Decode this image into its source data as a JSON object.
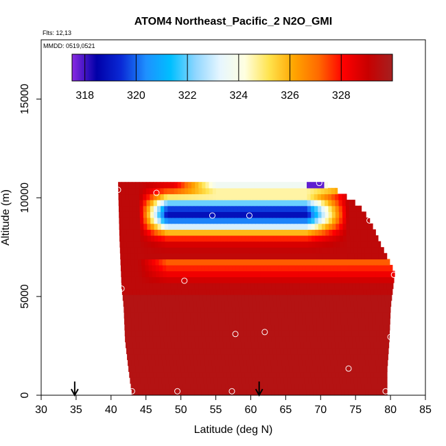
{
  "chart_data": {
    "type": "heatmap",
    "title": "ATOM4 Northeast_Pacific_2 N2O_GMI",
    "flights_note": "Flts: 12,13",
    "date_note": "MMDD: 0519,0521",
    "xlabel": "Latitude (deg N)",
    "ylabel": "Altitude (m)",
    "xlim": [
      30,
      85
    ],
    "ylim": [
      0,
      18000
    ],
    "x_ticks": [
      30,
      35,
      40,
      45,
      50,
      55,
      60,
      65,
      70,
      75,
      80,
      85
    ],
    "x_tick_labels": [
      "30",
      "35",
      "40",
      "45",
      "50",
      "55",
      "60",
      "65",
      "70",
      "75",
      "80",
      "85"
    ],
    "y_ticks": [
      0,
      5000,
      10000,
      15000
    ],
    "y_tick_labels": [
      "0",
      "5000",
      "10000",
      "15000"
    ],
    "grid": false,
    "colorbar": {
      "range": [
        317.5,
        330
      ],
      "ticks": [
        318,
        320,
        322,
        324,
        326,
        328
      ],
      "tick_labels": [
        "318",
        "320",
        "322",
        "324",
        "326",
        "328"
      ],
      "colors": [
        "#8a2be2",
        "#0000a8",
        "#0a2ad6",
        "#1e90ff",
        "#00bfff",
        "#8fd6ff",
        "#e6f6ff",
        "#ffffe0",
        "#ffe34d",
        "#ffa500",
        "#ff6a00",
        "#ff0000",
        "#c80000",
        "#a52020"
      ]
    },
    "curtain_description": "N2O field: 328-330 ppb below ~6000 m; low-N2O tongue (318-324) between 8000-10500 m north of 45N",
    "sample_points": [
      {
        "lat": 41.0,
        "alt": 10400
      },
      {
        "lat": 46.5,
        "alt": 10250
      },
      {
        "lat": 69.8,
        "alt": 10750
      },
      {
        "lat": 54.5,
        "alt": 9100
      },
      {
        "lat": 59.8,
        "alt": 9100
      },
      {
        "lat": 77.0,
        "alt": 8850
      },
      {
        "lat": 80.5,
        "alt": 6100
      },
      {
        "lat": 50.5,
        "alt": 5800
      },
      {
        "lat": 41.5,
        "alt": 5400
      },
      {
        "lat": 57.8,
        "alt": 3100
      },
      {
        "lat": 62.0,
        "alt": 3200
      },
      {
        "lat": 80.0,
        "alt": 2950
      },
      {
        "lat": 74.0,
        "alt": 1350
      },
      {
        "lat": 43.0,
        "alt": 200
      },
      {
        "lat": 49.5,
        "alt": 200
      },
      {
        "lat": 57.3,
        "alt": 200
      },
      {
        "lat": 79.3,
        "alt": 200
      }
    ],
    "flight_markers": [
      {
        "lat": 34.8
      },
      {
        "lat": 61.2
      }
    ]
  }
}
